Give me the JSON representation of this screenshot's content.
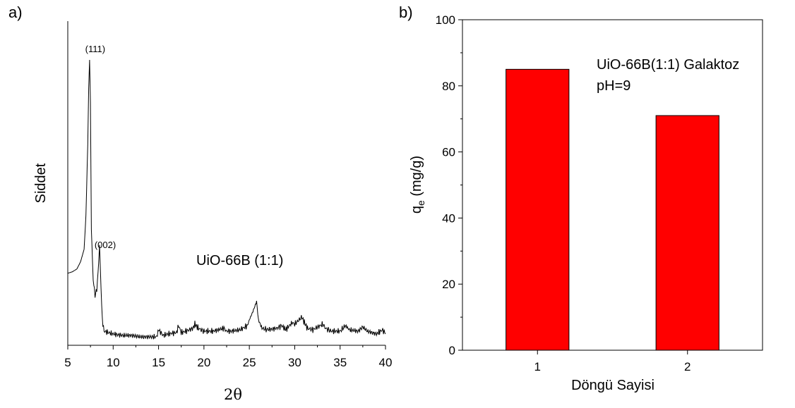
{
  "chart_data": [
    {
      "panel_label": "a)",
      "type": "line",
      "xlabel": "2θ",
      "ylabel": "Siddet",
      "xlim": [
        5,
        40
      ],
      "x_ticks": [
        "5",
        "10",
        "15",
        "20",
        "25",
        "30",
        "35",
        "40"
      ],
      "y_ticks_shown": false,
      "sample_label": "UiO-66B (1:1)",
      "peak_labels": [
        {
          "text": "(111)",
          "x": 7.4
        },
        {
          "text": "(002)",
          "x": 8.5
        }
      ],
      "series": [
        {
          "x": [
            5.0,
            5.5,
            6.0,
            6.4,
            6.8,
            7.0,
            7.2,
            7.3,
            7.4,
            7.5,
            7.6,
            7.8,
            8.0,
            8.2,
            8.4,
            8.5,
            8.6,
            8.8,
            9.0,
            9.5,
            10.0,
            11,
            12,
            13,
            14,
            14.8,
            15.0,
            15.5,
            16,
            17.0,
            17.2,
            17.5,
            18,
            18.8,
            19.0,
            19.4,
            20,
            21,
            22.2,
            22.5,
            23,
            24,
            24.8,
            25.0,
            25.4,
            25.8,
            26.0,
            26.4,
            27,
            28,
            28.6,
            29,
            29.7,
            30,
            30.8,
            31.0,
            31.4,
            32,
            33.1,
            33.4,
            34,
            35,
            35.6,
            36,
            37,
            37.5,
            38,
            39,
            39.7,
            40.0
          ],
          "y": [
            0.245,
            0.25,
            0.26,
            0.285,
            0.33,
            0.45,
            0.7,
            0.9,
            1.0,
            0.85,
            0.4,
            0.22,
            0.165,
            0.19,
            0.28,
            0.345,
            0.25,
            0.08,
            0.04,
            0.035,
            0.03,
            0.025,
            0.025,
            0.02,
            0.02,
            0.02,
            0.045,
            0.025,
            0.03,
            0.035,
            0.06,
            0.035,
            0.04,
            0.05,
            0.065,
            0.05,
            0.04,
            0.04,
            0.05,
            0.04,
            0.04,
            0.045,
            0.06,
            0.08,
            0.11,
            0.145,
            0.08,
            0.05,
            0.045,
            0.05,
            0.06,
            0.045,
            0.07,
            0.065,
            0.09,
            0.075,
            0.05,
            0.045,
            0.065,
            0.05,
            0.04,
            0.04,
            0.06,
            0.045,
            0.04,
            0.055,
            0.04,
            0.03,
            0.045,
            0.03
          ]
        }
      ]
    },
    {
      "panel_label": "b)",
      "type": "bar",
      "categories": [
        "1",
        "2"
      ],
      "values": [
        85,
        71
      ],
      "xlabel": "Döngü Sayisi",
      "ylabel_main": "q",
      "ylabel_sub": "e",
      "ylabel_unit": " (mg/g)",
      "ylim": [
        0,
        100
      ],
      "y_ticks": [
        "0",
        "20",
        "40",
        "60",
        "80",
        "100"
      ],
      "annotation_lines": [
        "UiO-66B(1:1) Galaktoz",
        "pH=9"
      ],
      "bar_color": "#ff0000",
      "bar_edge_color": "#000000"
    }
  ]
}
